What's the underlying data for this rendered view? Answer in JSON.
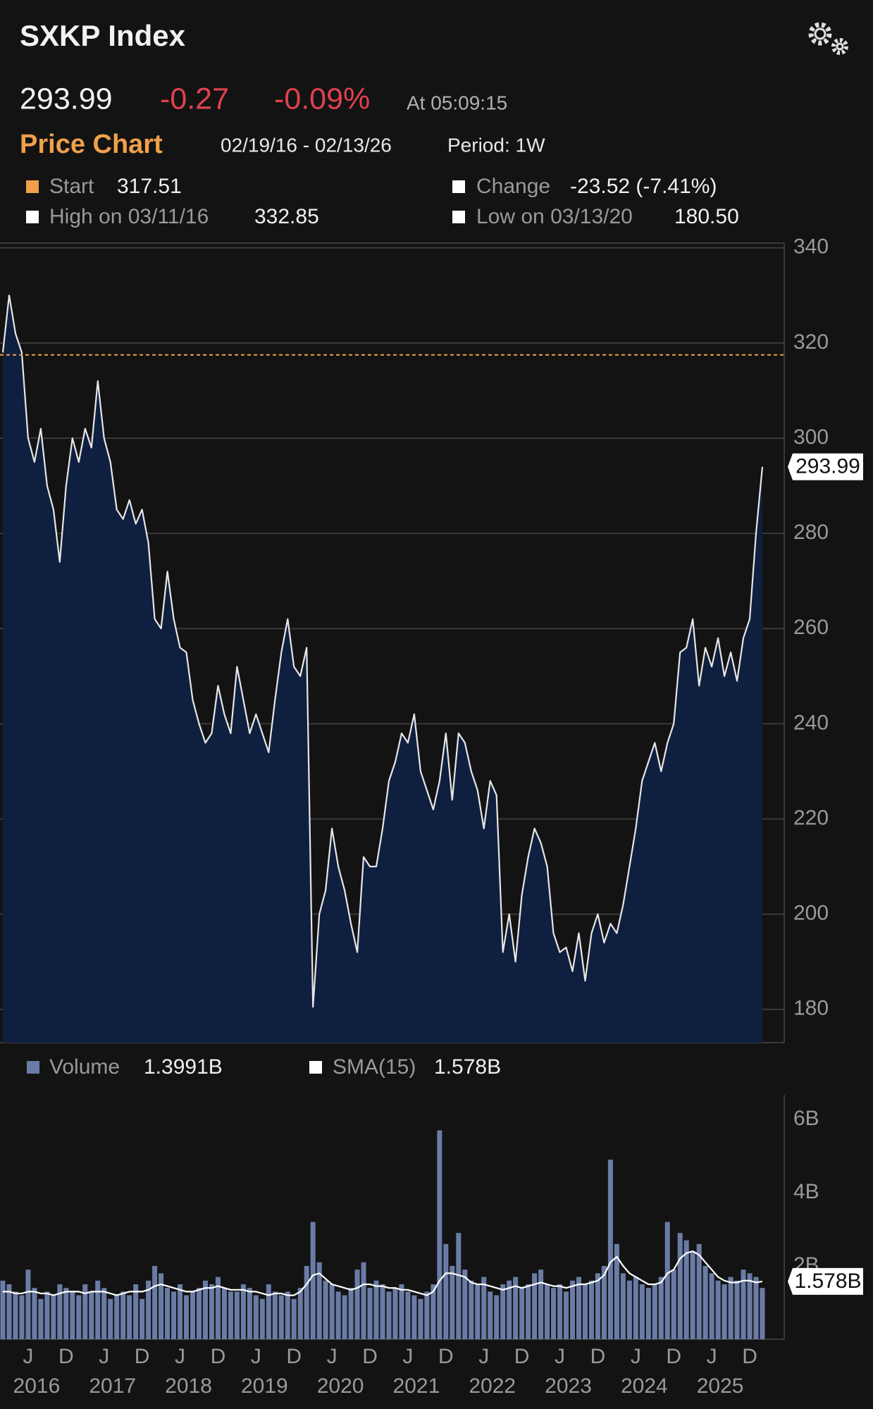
{
  "header": {
    "title": "SXKP Index",
    "last": "293.99",
    "change": "-0.27",
    "change_pct": "-0.09%",
    "time": "At 05:09:15"
  },
  "chart_data": [
    {
      "type": "line",
      "title": "Price Chart",
      "range": "02/19/16 - 02/13/26",
      "period": "Period: 1W",
      "start_label": "Start",
      "start": 317.51,
      "start_color": "#f0a04b",
      "change_label": "Change",
      "change": "-23.52 (-7.41%)",
      "high_label": "High on 03/11/16",
      "high": 332.85,
      "low_label": "Low on 03/13/20",
      "low": {
        "value": 180.5,
        "label": "180.50"
      },
      "x": [
        "2016-02",
        "2016-03",
        "2016-04",
        "2016-05",
        "2016-06",
        "2016-07",
        "2016-08",
        "2016-09",
        "2016-10",
        "2016-11",
        "2016-12",
        "2017-01",
        "2017-02",
        "2017-03",
        "2017-04",
        "2017-05",
        "2017-06",
        "2017-07",
        "2017-08",
        "2017-09",
        "2017-10",
        "2017-11",
        "2017-12",
        "2018-01",
        "2018-02",
        "2018-03",
        "2018-04",
        "2018-05",
        "2018-06",
        "2018-07",
        "2018-08",
        "2018-09",
        "2018-10",
        "2018-11",
        "2018-12",
        "2019-01",
        "2019-02",
        "2019-03",
        "2019-04",
        "2019-05",
        "2019-06",
        "2019-07",
        "2019-08",
        "2019-09",
        "2019-10",
        "2019-11",
        "2019-12",
        "2020-01",
        "2020-02",
        "2020-03",
        "2020-04",
        "2020-05",
        "2020-06",
        "2020-07",
        "2020-08",
        "2020-09",
        "2020-10",
        "2020-11",
        "2020-12",
        "2021-01",
        "2021-02",
        "2021-03",
        "2021-04",
        "2021-05",
        "2021-06",
        "2021-07",
        "2021-08",
        "2021-09",
        "2021-10",
        "2021-11",
        "2021-12",
        "2022-01",
        "2022-02",
        "2022-03",
        "2022-04",
        "2022-05",
        "2022-06",
        "2022-07",
        "2022-08",
        "2022-09",
        "2022-10",
        "2022-11",
        "2022-12",
        "2023-01",
        "2023-02",
        "2023-03",
        "2023-04",
        "2023-05",
        "2023-06",
        "2023-07",
        "2023-08",
        "2023-09",
        "2023-10",
        "2023-11",
        "2023-12",
        "2024-01",
        "2024-02",
        "2024-03",
        "2024-04",
        "2024-05",
        "2024-06",
        "2024-07",
        "2024-08",
        "2024-09",
        "2024-10",
        "2024-11",
        "2024-12",
        "2025-01",
        "2025-02",
        "2025-03",
        "2025-04",
        "2025-05",
        "2025-06",
        "2025-07",
        "2025-08",
        "2025-09",
        "2025-10",
        "2025-11",
        "2025-12",
        "2026-01",
        "2026-02"
      ],
      "series": [
        {
          "color": "#e6e6e6",
          "fill": "#0f1f3f",
          "values": [
            318,
            330,
            322,
            318,
            300,
            295,
            302,
            290,
            285,
            274,
            290,
            300,
            295,
            302,
            298,
            312,
            300,
            295,
            285,
            283,
            287,
            282,
            285,
            278,
            262,
            260,
            272,
            262,
            256,
            255,
            245,
            240,
            236,
            238,
            248,
            242,
            238,
            252,
            245,
            238,
            242,
            238,
            234,
            245,
            255,
            262,
            252,
            250,
            256,
            180.5,
            200,
            205,
            218,
            210,
            205,
            198,
            192,
            212,
            210,
            210,
            218,
            228,
            232,
            238,
            236,
            242,
            230,
            226,
            222,
            228,
            238,
            224,
            238,
            236,
            230,
            226,
            218,
            228,
            225,
            192,
            200,
            190,
            204,
            212,
            218,
            215,
            210,
            196,
            192,
            193,
            188,
            196,
            186,
            196,
            200,
            194,
            198,
            196,
            202,
            210,
            218,
            228,
            232,
            236,
            230,
            236,
            240,
            255,
            256,
            262,
            248,
            256,
            252,
            258,
            250,
            255,
            249,
            258,
            262,
            280,
            293.99
          ]
        }
      ],
      "ylim": [
        173,
        341
      ],
      "yticks": [
        180,
        200,
        220,
        240,
        260,
        280,
        300,
        320,
        340
      ],
      "grid": true
    },
    {
      "type": "bar",
      "x": [
        "2016-02",
        "2016-03",
        "2016-04",
        "2016-05",
        "2016-06",
        "2016-07",
        "2016-08",
        "2016-09",
        "2016-10",
        "2016-11",
        "2016-12",
        "2017-01",
        "2017-02",
        "2017-03",
        "2017-04",
        "2017-05",
        "2017-06",
        "2017-07",
        "2017-08",
        "2017-09",
        "2017-10",
        "2017-11",
        "2017-12",
        "2018-01",
        "2018-02",
        "2018-03",
        "2018-04",
        "2018-05",
        "2018-06",
        "2018-07",
        "2018-08",
        "2018-09",
        "2018-10",
        "2018-11",
        "2018-12",
        "2019-01",
        "2019-02",
        "2019-03",
        "2019-04",
        "2019-05",
        "2019-06",
        "2019-07",
        "2019-08",
        "2019-09",
        "2019-10",
        "2019-11",
        "2019-12",
        "2020-01",
        "2020-02",
        "2020-03",
        "2020-04",
        "2020-05",
        "2020-06",
        "2020-07",
        "2020-08",
        "2020-09",
        "2020-10",
        "2020-11",
        "2020-12",
        "2021-01",
        "2021-02",
        "2021-03",
        "2021-04",
        "2021-05",
        "2021-06",
        "2021-07",
        "2021-08",
        "2021-09",
        "2021-10",
        "2021-11",
        "2021-12",
        "2022-01",
        "2022-02",
        "2022-03",
        "2022-04",
        "2022-05",
        "2022-06",
        "2022-07",
        "2022-08",
        "2022-09",
        "2022-10",
        "2022-11",
        "2022-12",
        "2023-01",
        "2023-02",
        "2023-03",
        "2023-04",
        "2023-05",
        "2023-06",
        "2023-07",
        "2023-08",
        "2023-09",
        "2023-10",
        "2023-11",
        "2023-12",
        "2024-01",
        "2024-02",
        "2024-03",
        "2024-04",
        "2024-05",
        "2024-06",
        "2024-07",
        "2024-08",
        "2024-09",
        "2024-10",
        "2024-11",
        "2024-12",
        "2025-01",
        "2025-02",
        "2025-03",
        "2025-04",
        "2025-05",
        "2025-06",
        "2025-07",
        "2025-08",
        "2025-09",
        "2025-10",
        "2025-11",
        "2025-12",
        "2026-01",
        "2026-02"
      ],
      "series": [
        {
          "name": "Volume",
          "color": "#6a7ca6",
          "value_label": "1.3991B",
          "values": [
            1.6,
            1.5,
            1.3,
            1.2,
            1.9,
            1.4,
            1.1,
            1.3,
            1.2,
            1.5,
            1.4,
            1.3,
            1.2,
            1.5,
            1.3,
            1.6,
            1.4,
            1.1,
            1.2,
            1.3,
            1.2,
            1.5,
            1.1,
            1.6,
            2.0,
            1.8,
            1.4,
            1.3,
            1.5,
            1.2,
            1.3,
            1.4,
            1.6,
            1.5,
            1.7,
            1.4,
            1.3,
            1.3,
            1.5,
            1.4,
            1.2,
            1.1,
            1.5,
            1.3,
            1.2,
            1.3,
            1.1,
            1.4,
            2.0,
            3.2,
            2.1,
            1.6,
            1.5,
            1.3,
            1.2,
            1.4,
            1.9,
            2.1,
            1.4,
            1.6,
            1.5,
            1.3,
            1.4,
            1.5,
            1.3,
            1.2,
            1.1,
            1.3,
            1.5,
            5.7,
            2.6,
            2.0,
            2.9,
            1.9,
            1.6,
            1.5,
            1.7,
            1.3,
            1.2,
            1.5,
            1.6,
            1.7,
            1.4,
            1.5,
            1.8,
            1.9,
            1.5,
            1.4,
            1.5,
            1.3,
            1.6,
            1.7,
            1.5,
            1.6,
            1.8,
            2.0,
            4.9,
            2.6,
            1.8,
            1.6,
            1.7,
            1.5,
            1.4,
            1.5,
            1.7,
            3.2,
            1.9,
            2.9,
            2.7,
            2.4,
            2.6,
            2.0,
            1.8,
            1.6,
            1.5,
            1.7,
            1.6,
            1.9,
            1.8,
            1.7,
            1.3991
          ]
        },
        {
          "name": "SMA(15)",
          "type": "line",
          "color": "#ffffff",
          "value_label": "1.578B",
          "values": [
            1.3,
            1.3,
            1.25,
            1.25,
            1.3,
            1.3,
            1.25,
            1.25,
            1.2,
            1.25,
            1.3,
            1.3,
            1.3,
            1.25,
            1.3,
            1.3,
            1.3,
            1.25,
            1.2,
            1.25,
            1.3,
            1.3,
            1.3,
            1.35,
            1.45,
            1.5,
            1.45,
            1.4,
            1.35,
            1.3,
            1.3,
            1.35,
            1.4,
            1.4,
            1.45,
            1.4,
            1.35,
            1.35,
            1.35,
            1.3,
            1.3,
            1.25,
            1.2,
            1.25,
            1.25,
            1.2,
            1.2,
            1.3,
            1.5,
            1.75,
            1.8,
            1.65,
            1.5,
            1.45,
            1.4,
            1.35,
            1.4,
            1.5,
            1.5,
            1.45,
            1.45,
            1.4,
            1.4,
            1.35,
            1.35,
            1.3,
            1.25,
            1.2,
            1.3,
            1.6,
            1.8,
            1.8,
            1.75,
            1.7,
            1.55,
            1.5,
            1.5,
            1.45,
            1.4,
            1.35,
            1.4,
            1.45,
            1.4,
            1.45,
            1.5,
            1.55,
            1.5,
            1.45,
            1.45,
            1.4,
            1.45,
            1.5,
            1.5,
            1.55,
            1.6,
            1.75,
            2.1,
            2.25,
            2.0,
            1.8,
            1.7,
            1.6,
            1.5,
            1.5,
            1.55,
            1.8,
            1.9,
            2.2,
            2.35,
            2.4,
            2.3,
            2.1,
            1.9,
            1.7,
            1.6,
            1.55,
            1.55,
            1.6,
            1.6,
            1.55,
            1.578
          ]
        }
      ],
      "ylim": [
        0,
        6.67
      ],
      "yticks": [
        {
          "value": 2,
          "label": "2B"
        },
        {
          "value": 4,
          "label": "4B"
        },
        {
          "value": 6,
          "label": "6B"
        }
      ],
      "xticks": [
        {
          "value": "2016-06",
          "label": "J"
        },
        {
          "value": "2016-12",
          "label": "D"
        },
        {
          "value": "2017-06",
          "label": "J"
        },
        {
          "value": "2017-12",
          "label": "D"
        },
        {
          "value": "2018-06",
          "label": "J"
        },
        {
          "value": "2018-12",
          "label": "D"
        },
        {
          "value": "2019-06",
          "label": "J"
        },
        {
          "value": "2019-12",
          "label": "D"
        },
        {
          "value": "2020-06",
          "label": "J"
        },
        {
          "value": "2020-12",
          "label": "D"
        },
        {
          "value": "2021-06",
          "label": "J"
        },
        {
          "value": "2021-12",
          "label": "D"
        },
        {
          "value": "2022-06",
          "label": "J"
        },
        {
          "value": "2022-12",
          "label": "D"
        },
        {
          "value": "2023-06",
          "label": "J"
        },
        {
          "value": "2023-12",
          "label": "D"
        },
        {
          "value": "2024-06",
          "label": "J"
        },
        {
          "value": "2024-12",
          "label": "D"
        },
        {
          "value": "2025-06",
          "label": "J"
        },
        {
          "value": "2025-12",
          "label": "D"
        }
      ],
      "year_ticks": [
        {
          "value": "2016-06",
          "label": "2016"
        },
        {
          "value": "2017-06",
          "label": "2017"
        },
        {
          "value": "2018-06",
          "label": "2018"
        },
        {
          "value": "2019-06",
          "label": "2019"
        },
        {
          "value": "2020-06",
          "label": "2020"
        },
        {
          "value": "2021-06",
          "label": "2021"
        },
        {
          "value": "2022-06",
          "label": "2022"
        },
        {
          "value": "2023-06",
          "label": "2023"
        },
        {
          "value": "2024-06",
          "label": "2024"
        },
        {
          "value": "2025-06",
          "label": "2025"
        }
      ]
    }
  ]
}
